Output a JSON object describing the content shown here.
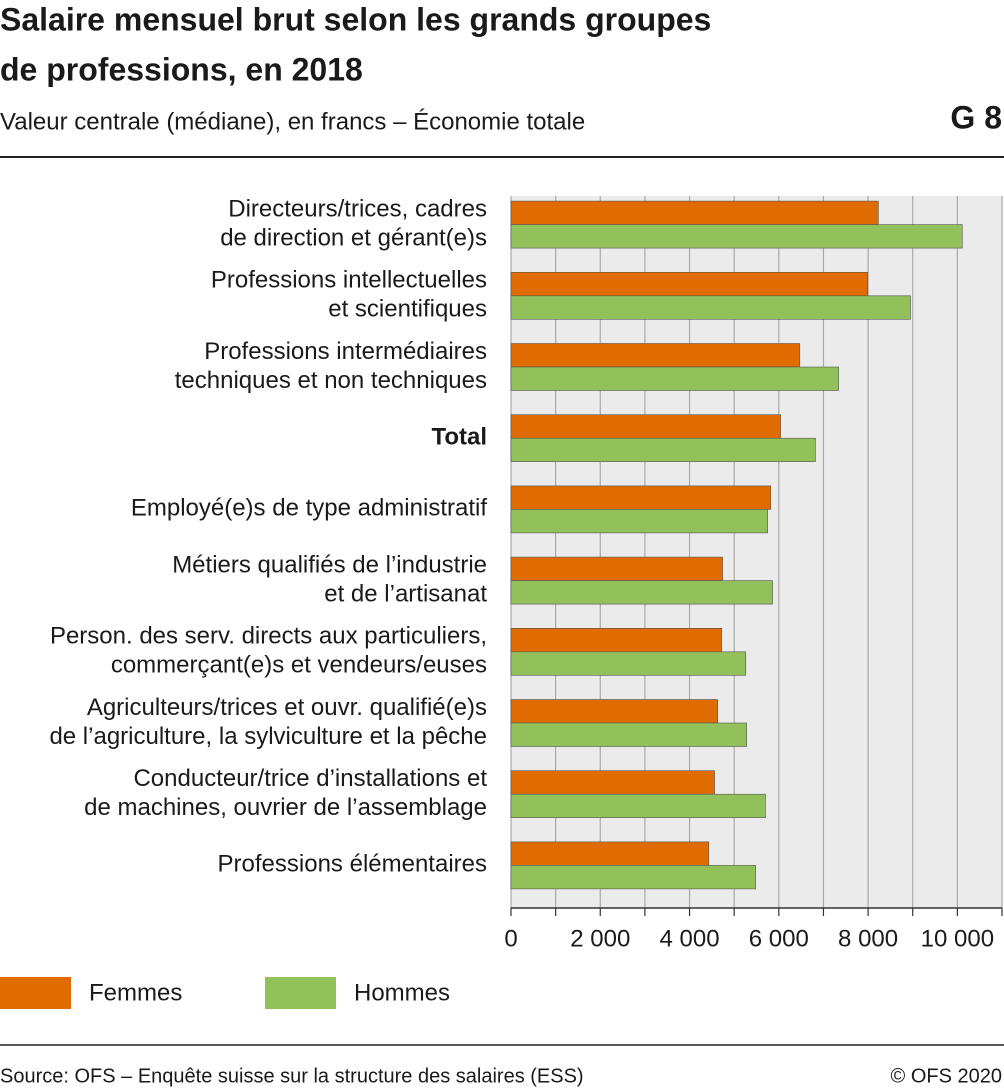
{
  "chart_data": {
    "type": "bar",
    "orientation": "horizontal",
    "title": [
      "Salaire mensuel brut selon les grands groupes",
      "de professions, en 2018"
    ],
    "subtitle": "Valeur centrale (médiane), en francs – Économie totale",
    "figure_label": "G 8",
    "categories": [
      [
        "Directeurs/trices, cadres",
        "de direction et gérant(e)s"
      ],
      [
        "Professions intellectuelles",
        "et scientifiques"
      ],
      [
        "Professions intermédiaires",
        "techniques et non techniques"
      ],
      [
        "Total"
      ],
      [
        "Employé(e)s de type administratif"
      ],
      [
        "Métiers qualifiés de l’industrie",
        "et de l’artisanat"
      ],
      [
        "Person. des serv. directs aux particuliers,",
        "commerçant(e)s et vendeurs/euses"
      ],
      [
        "Agriculteurs/trices et ouvr. qualifié(e)s",
        "de l’agriculture, la sylviculture et la pêche"
      ],
      [
        "Conducteur/trice d’installations et",
        "de machines, ouvrier de l’assemblage"
      ],
      [
        "Professions élémentaires"
      ]
    ],
    "bold_categories": [
      "Total"
    ],
    "series": [
      {
        "name": "Femmes",
        "color": "#e06c00",
        "values": [
          8230,
          7990,
          6470,
          6040,
          5820,
          4740,
          4720,
          4630,
          4560,
          4430
        ]
      },
      {
        "name": "Hommes",
        "color": "#92c05a",
        "values": [
          10110,
          8950,
          7340,
          6820,
          5750,
          5860,
          5260,
          5280,
          5700,
          5480
        ]
      }
    ],
    "xlim": [
      0,
      11000
    ],
    "xticks": [
      0,
      {
        "value": 2000,
        "label": "2 000"
      },
      {
        "value": 4000,
        "label": "4 000"
      },
      {
        "value": 6000,
        "label": "6 000"
      },
      {
        "value": 8000,
        "label": "8 000"
      },
      {
        "value": 10000,
        "label": "10 000"
      }
    ],
    "minor_xticks": [
      1000,
      3000,
      5000,
      7000,
      9000,
      11000
    ],
    "grid": true,
    "legend": "bottom-left",
    "source": "Source: OFS – Enquête suisse sur la structure des salaires (ESS)",
    "copyright": "© OFS 2020"
  }
}
